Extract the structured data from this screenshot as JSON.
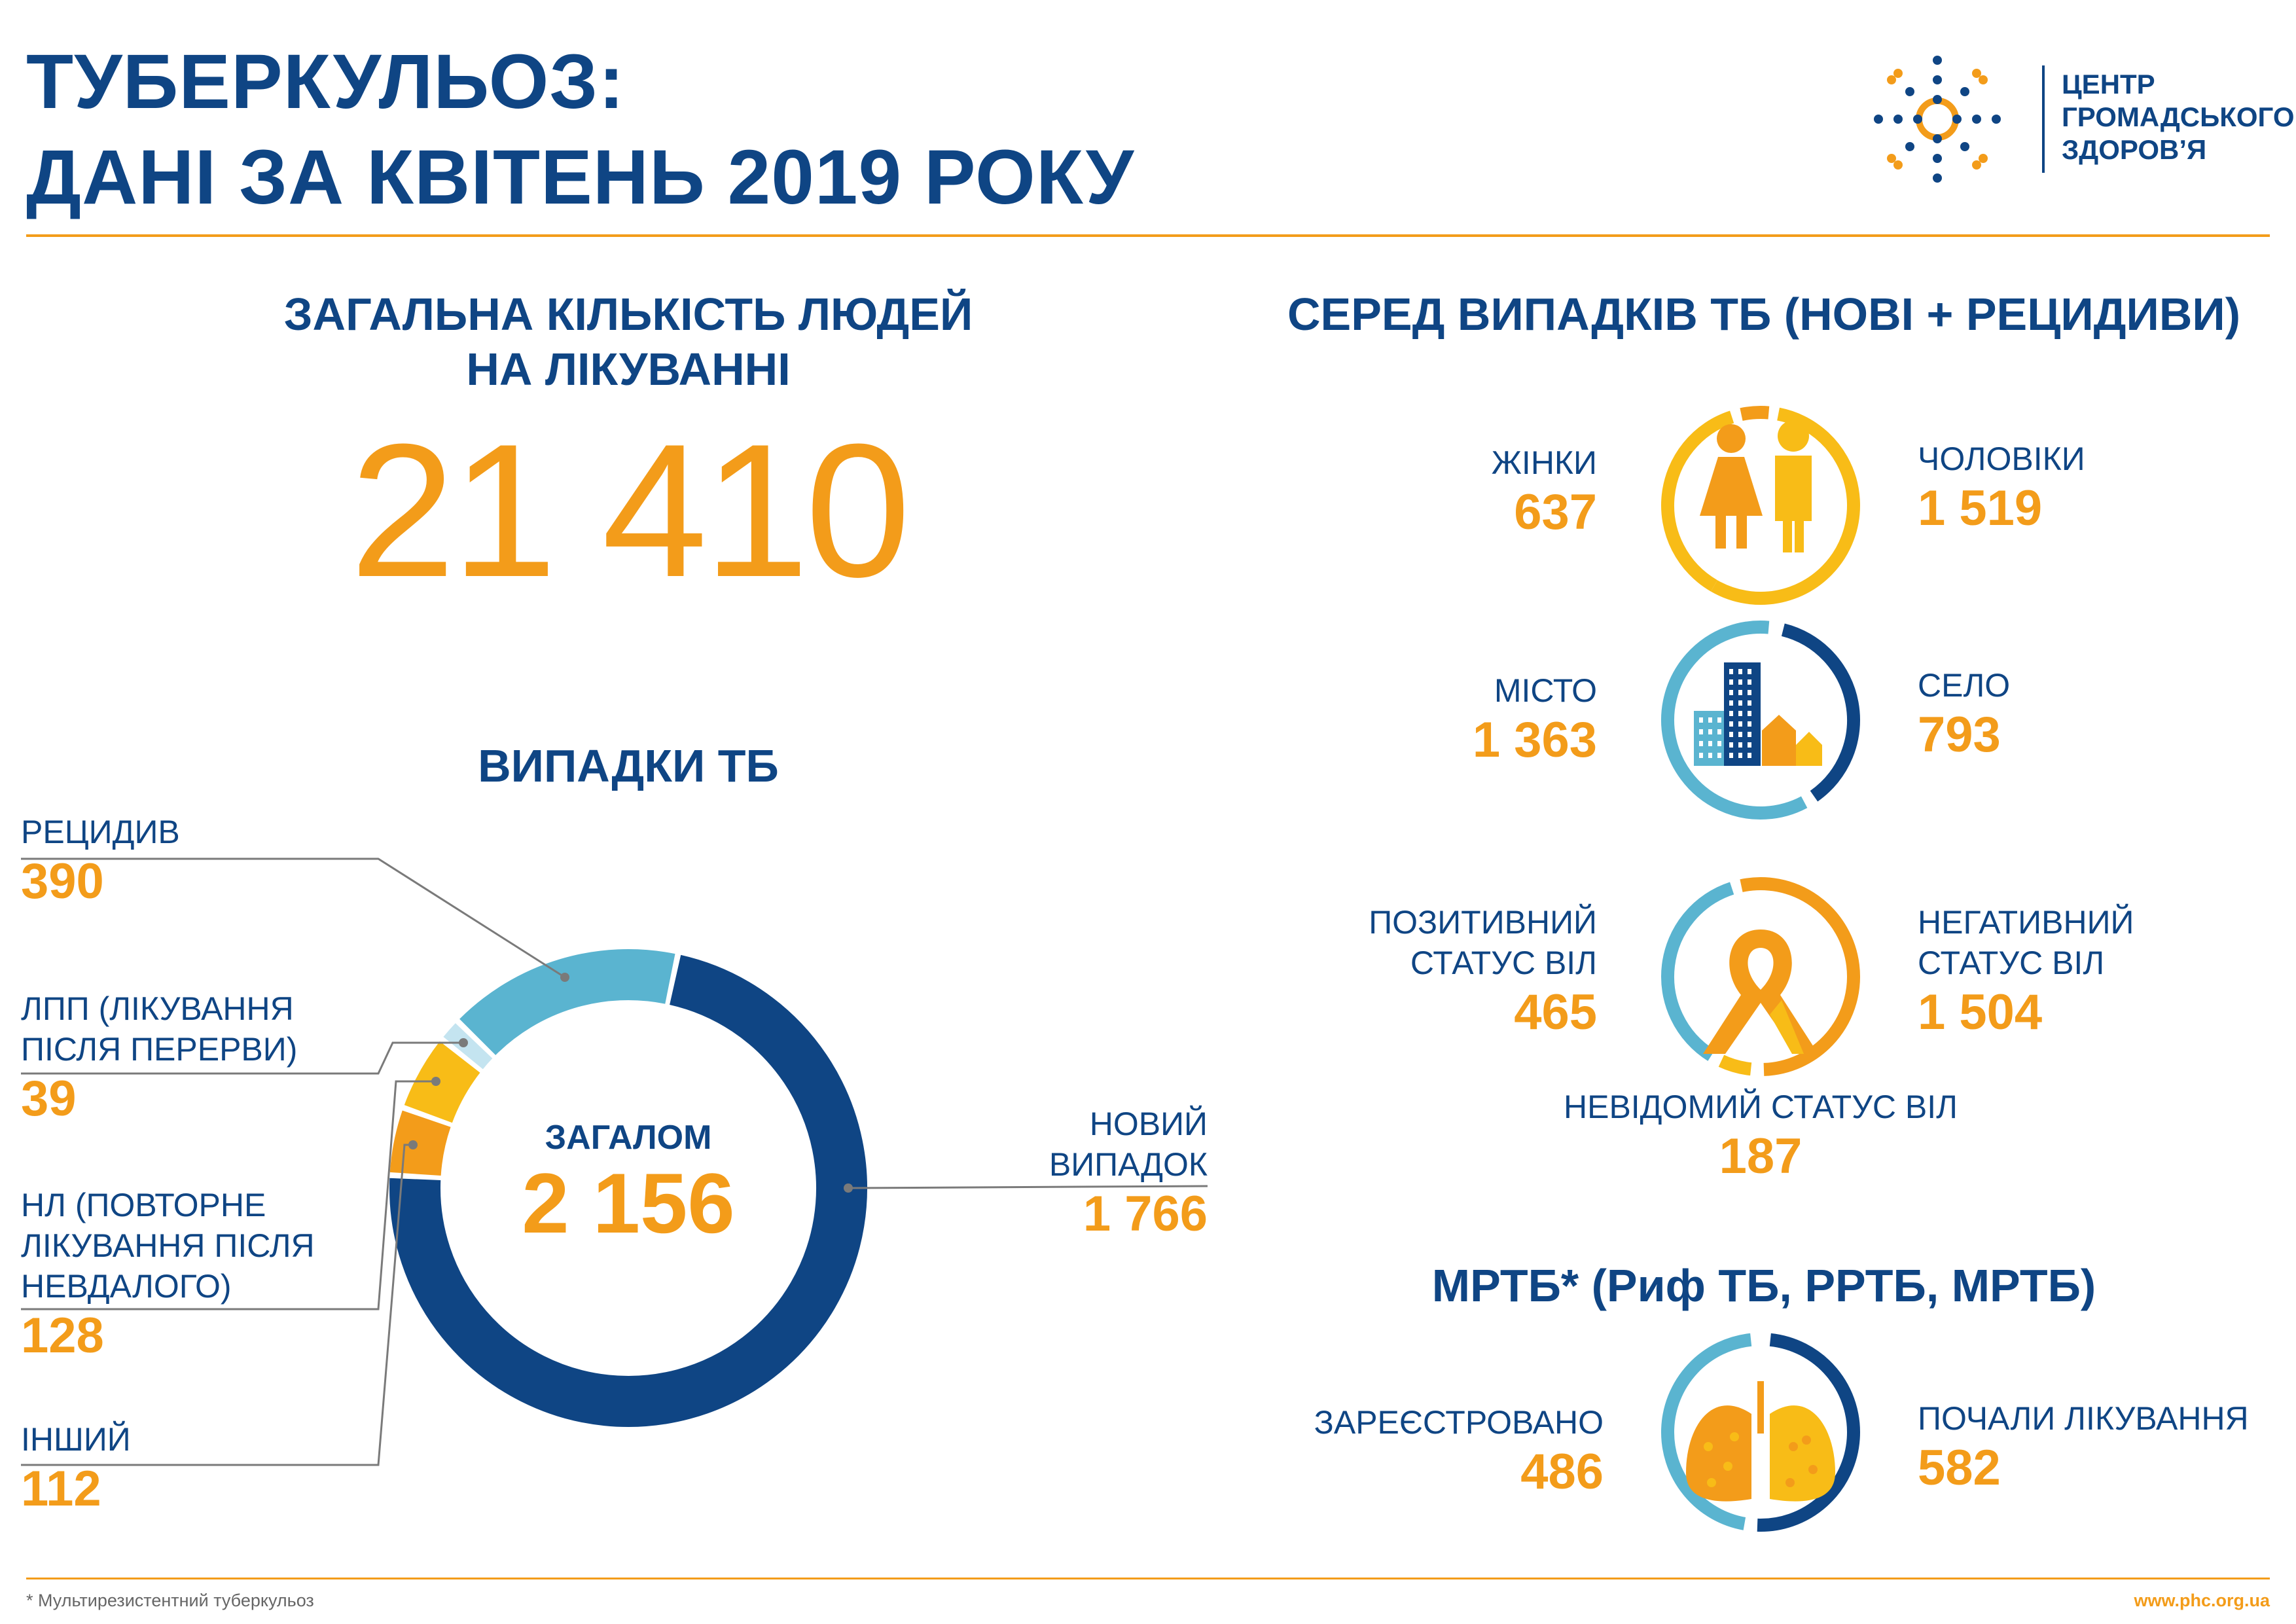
{
  "title": {
    "line1": "ТУБЕРКУЛЬОЗ:",
    "line2": "ДАНІ ЗА КВІТЕНЬ 2019 РОКУ"
  },
  "logo": {
    "line1": "ЦЕНТР",
    "line2": "ГРОМАДСЬКОГО",
    "line3": "ЗДОРОВ’Я"
  },
  "treatment": {
    "heading_line1": "ЗАГАЛЬНА КІЛЬКІСТЬ ЛЮДЕЙ",
    "heading_line2": "НА ЛІКУВАННІ",
    "total": "21 410"
  },
  "tb_cases": {
    "heading": "ВИПАДКИ ТБ",
    "center_label": "ЗАГАЛОМ",
    "center_total": "2 156",
    "items": [
      {
        "label_lines": [
          "РЕЦИДИВ"
        ],
        "value": "390",
        "number": 390,
        "color": "#5ab4d0"
      },
      {
        "label_lines": [
          "ЛПП (ЛІКУВАННЯ",
          "ПІСЛЯ ПЕРЕРВИ)"
        ],
        "value": "39",
        "number": 39,
        "color": "#c4e4f0"
      },
      {
        "label_lines": [
          "НЛ (ПОВТОРНЕ",
          "ЛІКУВАННЯ ПІСЛЯ",
          "НЕВДАЛОГО)"
        ],
        "value": "128",
        "number": 128,
        "color": "#f8bc17"
      },
      {
        "label_lines": [
          "ІНШИЙ"
        ],
        "value": "112",
        "number": 112,
        "color": "#f39c1a"
      }
    ],
    "new_case": {
      "label_lines": [
        "НОВИЙ",
        "ВИПАДОК"
      ],
      "value": "1 766",
      "number": 1766,
      "color": "#0f4584"
    }
  },
  "among_cases": {
    "heading": "СЕРЕД ВИПАДКІВ ТБ (НОВІ + РЕЦИДИВИ)",
    "gender": {
      "left_label": "ЖІНКИ",
      "left_value": "637",
      "right_label": "ЧОЛОВІКИ",
      "right_value": "1 519"
    },
    "location": {
      "left_label": "МІСТО",
      "left_value": "1 363",
      "right_label": "СЕЛО",
      "right_value": "793"
    },
    "hiv": {
      "left_label_line1": "ПОЗИТИВНИЙ",
      "left_label_line2": "СТАТУС ВІЛ",
      "left_value": "465",
      "right_label_line1": "НЕГАТИВНИЙ",
      "right_label_line2": "СТАТУС  ВІЛ",
      "right_value": "1 504",
      "unknown_label": "НЕВІДОМИЙ СТАТУС ВІЛ",
      "unknown_value": "187"
    }
  },
  "mdr": {
    "heading": "МРТБ* (Риф ТБ, РРТБ, МРТБ)",
    "left_label": "ЗАРЕЄСТРОВАНО",
    "left_value": "486",
    "right_label": "ПОЧАЛИ ЛІКУВАННЯ",
    "right_value": "582"
  },
  "footer": {
    "note": "* Мультирезистентний туберкульоз",
    "url": "www.phc.org.ua"
  },
  "icons": [
    "people-icon",
    "buildings-icon",
    "ribbon-icon",
    "lungs-icon",
    "logo-icon"
  ]
}
